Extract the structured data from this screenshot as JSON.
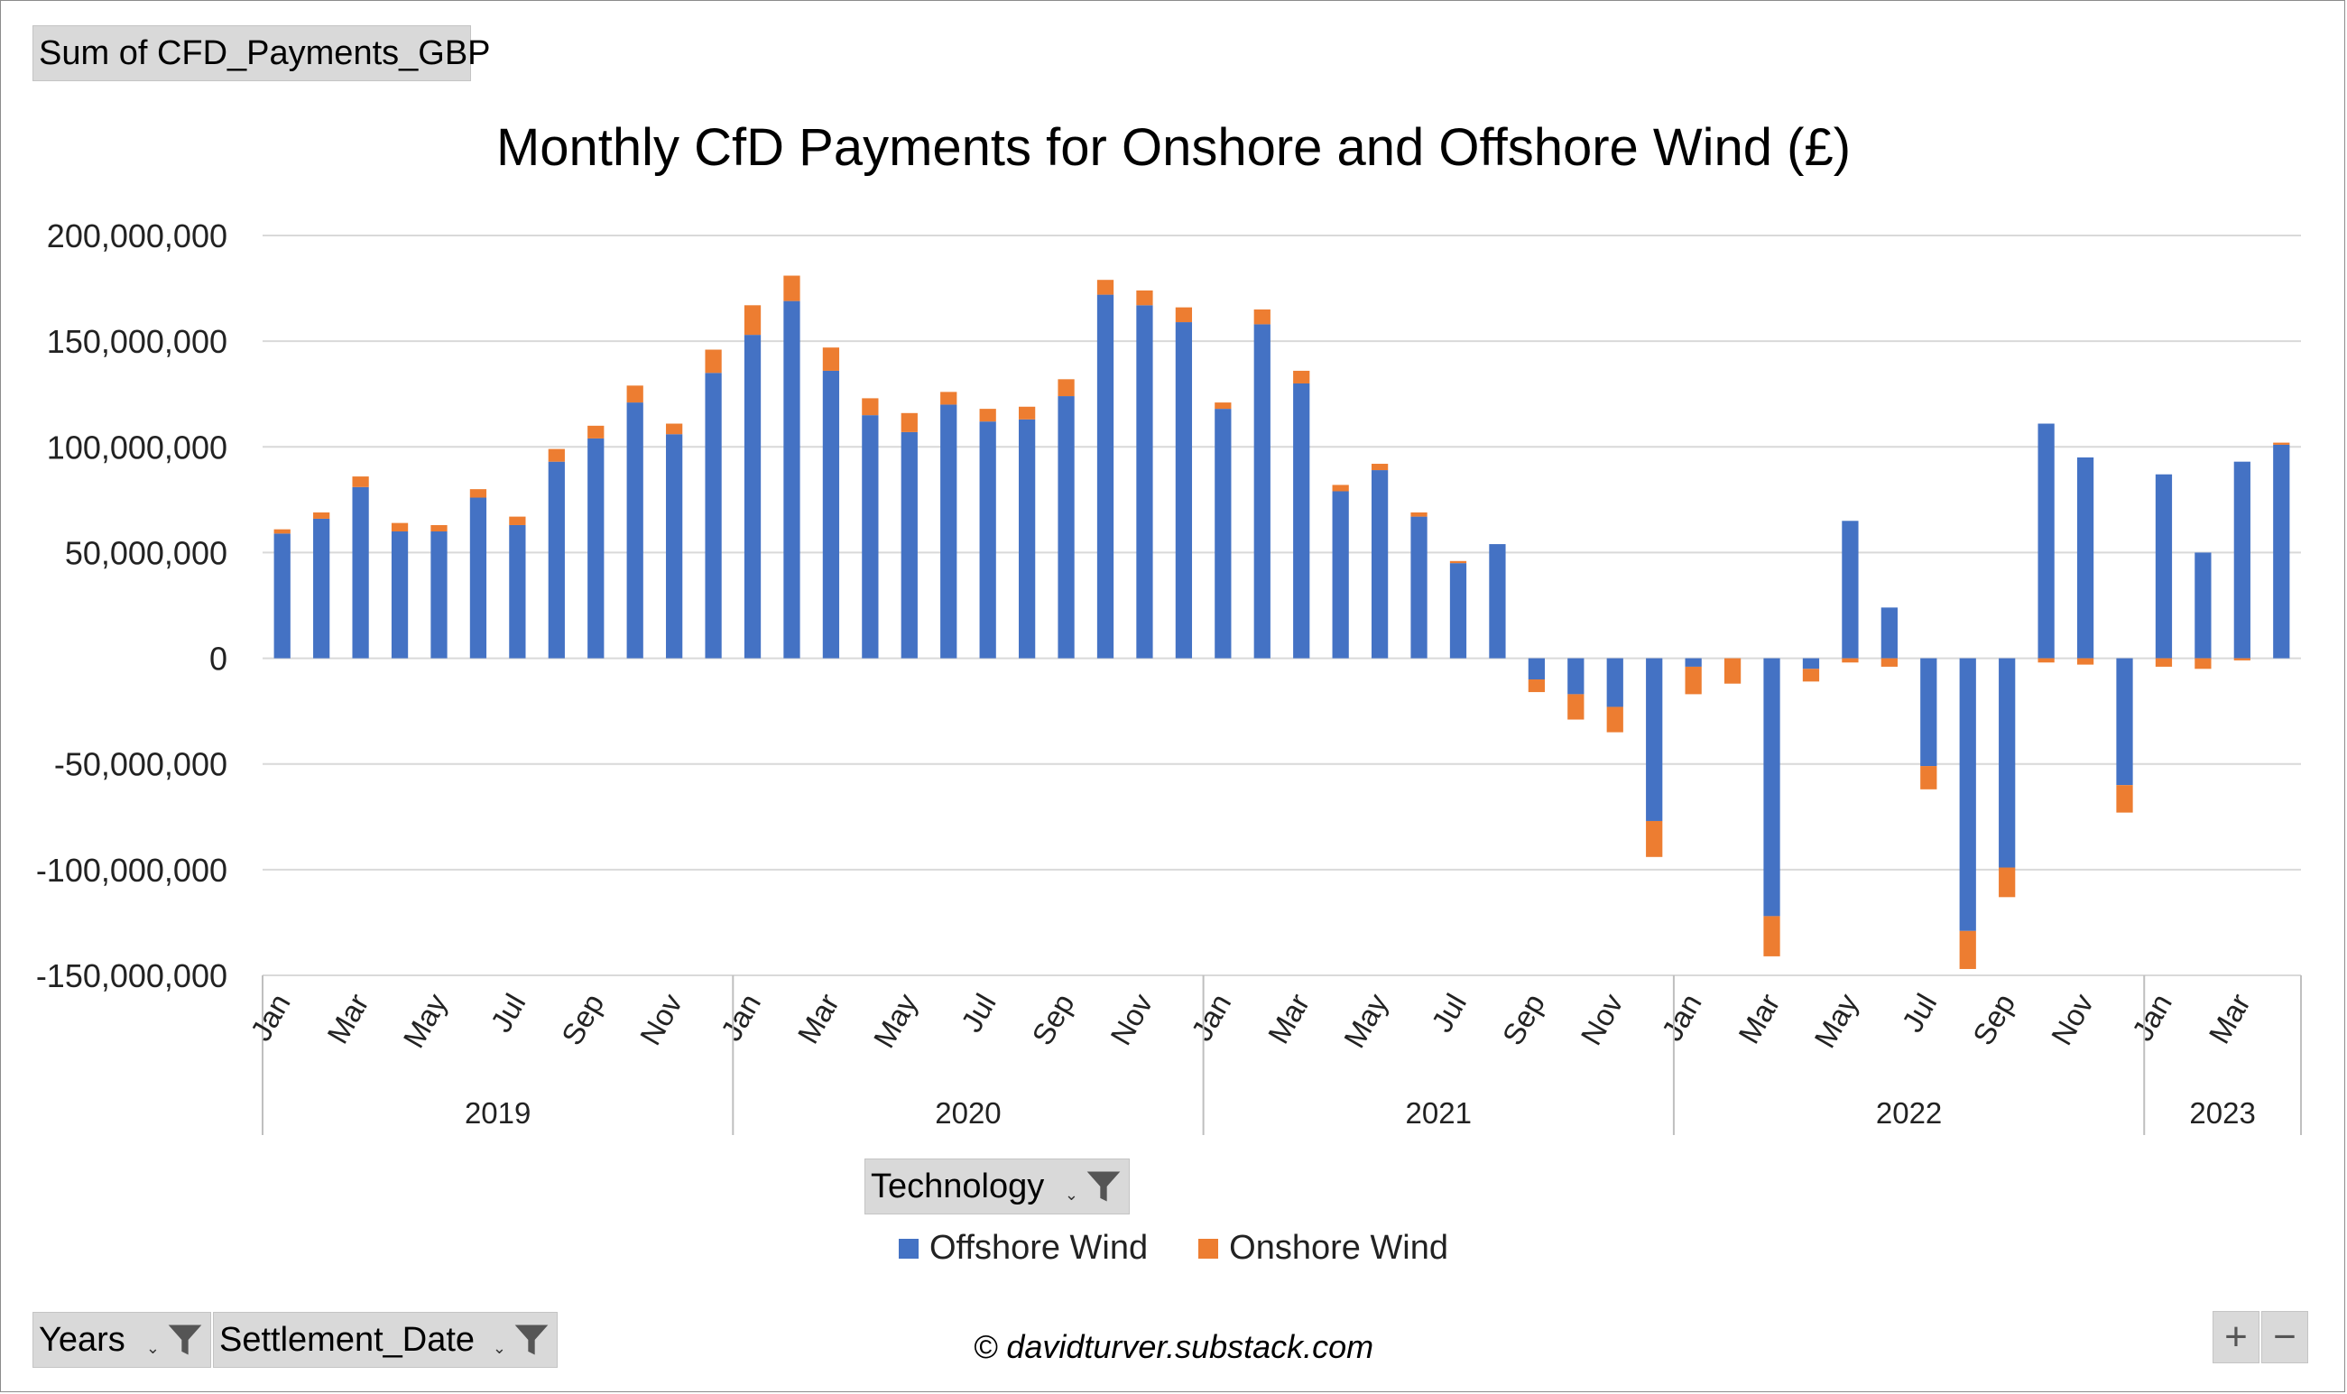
{
  "field_buttons": {
    "values_field": "Sum of CFD_Payments_GBP",
    "legend_field": "Technology",
    "axis_field_1": "Years",
    "axis_field_2": "Settlement_Date"
  },
  "credit": "© davidturver.substack.com",
  "zoom": {
    "plus": "+",
    "minus": "−"
  },
  "icons": {
    "filter": "funnel-icon",
    "dropdown": "dropdown-arrow-icon"
  },
  "chart_data": {
    "type": "bar",
    "stacked": true,
    "title": "Monthly CfD Payments for Onshore and Offshore Wind (£)",
    "xlabel": "",
    "ylabel": "",
    "ylim": [
      -150000000,
      200000000
    ],
    "y_ticks": [
      200000000,
      150000000,
      100000000,
      50000000,
      0,
      -50000000,
      -100000000,
      -150000000
    ],
    "y_tick_labels": [
      "200,000,000",
      "150,000,000",
      "100,000,000",
      "50,000,000",
      "0",
      "-50,000,000",
      "-100,000,000",
      "-150,000,000"
    ],
    "grid": true,
    "legend_position": "bottom",
    "categories": [
      "Jan",
      "Feb",
      "Mar",
      "Apr",
      "May",
      "Jun",
      "Jul",
      "Aug",
      "Sep",
      "Oct",
      "Nov",
      "Dec",
      "Jan",
      "Feb",
      "Mar",
      "Apr",
      "May",
      "Jun",
      "Jul",
      "Aug",
      "Sep",
      "Oct",
      "Nov",
      "Dec",
      "Jan",
      "Feb",
      "Mar",
      "Apr",
      "May",
      "Jun",
      "Jul",
      "Aug",
      "Sep",
      "Oct",
      "Nov",
      "Dec",
      "Jan",
      "Feb",
      "Mar",
      "Apr",
      "May",
      "Jun",
      "Jul",
      "Aug",
      "Sep",
      "Oct",
      "Nov",
      "Dec",
      "Jan",
      "Feb",
      "Mar",
      "Apr"
    ],
    "visible_month_labels": [
      "Jan",
      "",
      "Mar",
      "",
      "May",
      "",
      "Jul",
      "",
      "Sep",
      "",
      "Nov",
      "",
      "Jan",
      "",
      "Mar",
      "",
      "May",
      "",
      "Jul",
      "",
      "Sep",
      "",
      "Nov",
      "",
      "Jan",
      "",
      "Mar",
      "",
      "May",
      "",
      "Jul",
      "",
      "Sep",
      "",
      "Nov",
      "",
      "Jan",
      "",
      "Mar",
      "",
      "May",
      "",
      "Jul",
      "",
      "Sep",
      "",
      "Nov",
      "",
      "Jan",
      "",
      "Mar",
      ""
    ],
    "year_groups": [
      {
        "label": "2019",
        "months": 12
      },
      {
        "label": "2020",
        "months": 12
      },
      {
        "label": "2021",
        "months": 12
      },
      {
        "label": "2022",
        "months": 12
      },
      {
        "label": "2023",
        "months": 4
      }
    ],
    "series": [
      {
        "name": "Offshore Wind",
        "color": "#4472c4",
        "values": [
          59000000,
          66000000,
          81000000,
          60000000,
          60000000,
          76000000,
          63000000,
          93000000,
          104000000,
          121000000,
          106000000,
          135000000,
          153000000,
          169000000,
          136000000,
          115000000,
          107000000,
          120000000,
          112000000,
          113000000,
          124000000,
          172000000,
          167000000,
          159000000,
          118000000,
          158000000,
          130000000,
          79000000,
          89000000,
          67000000,
          45000000,
          54000000,
          -10000000,
          -17000000,
          -23000000,
          -77000000,
          -4000000,
          0,
          -122000000,
          -5000000,
          65000000,
          24000000,
          -51000000,
          -129000000,
          -99000000,
          111000000,
          95000000,
          -60000000,
          87000000,
          50000000,
          93000000,
          101000000
        ]
      },
      {
        "name": "Onshore Wind",
        "color": "#ed7d31",
        "values": [
          2000000,
          3000000,
          5000000,
          4000000,
          3000000,
          4000000,
          4000000,
          6000000,
          6000000,
          8000000,
          5000000,
          11000000,
          14000000,
          12000000,
          11000000,
          8000000,
          9000000,
          6000000,
          6000000,
          6000000,
          8000000,
          7000000,
          7000000,
          7000000,
          3000000,
          7000000,
          6000000,
          3000000,
          3000000,
          2000000,
          1000000,
          0,
          -6000000,
          -12000000,
          -12000000,
          -17000000,
          -13000000,
          -12000000,
          -19000000,
          -6000000,
          -2000000,
          -4000000,
          -11000000,
          -18000000,
          -14000000,
          -2000000,
          -3000000,
          -13000000,
          -4000000,
          -5000000,
          -1000000,
          1000000
        ]
      }
    ]
  }
}
